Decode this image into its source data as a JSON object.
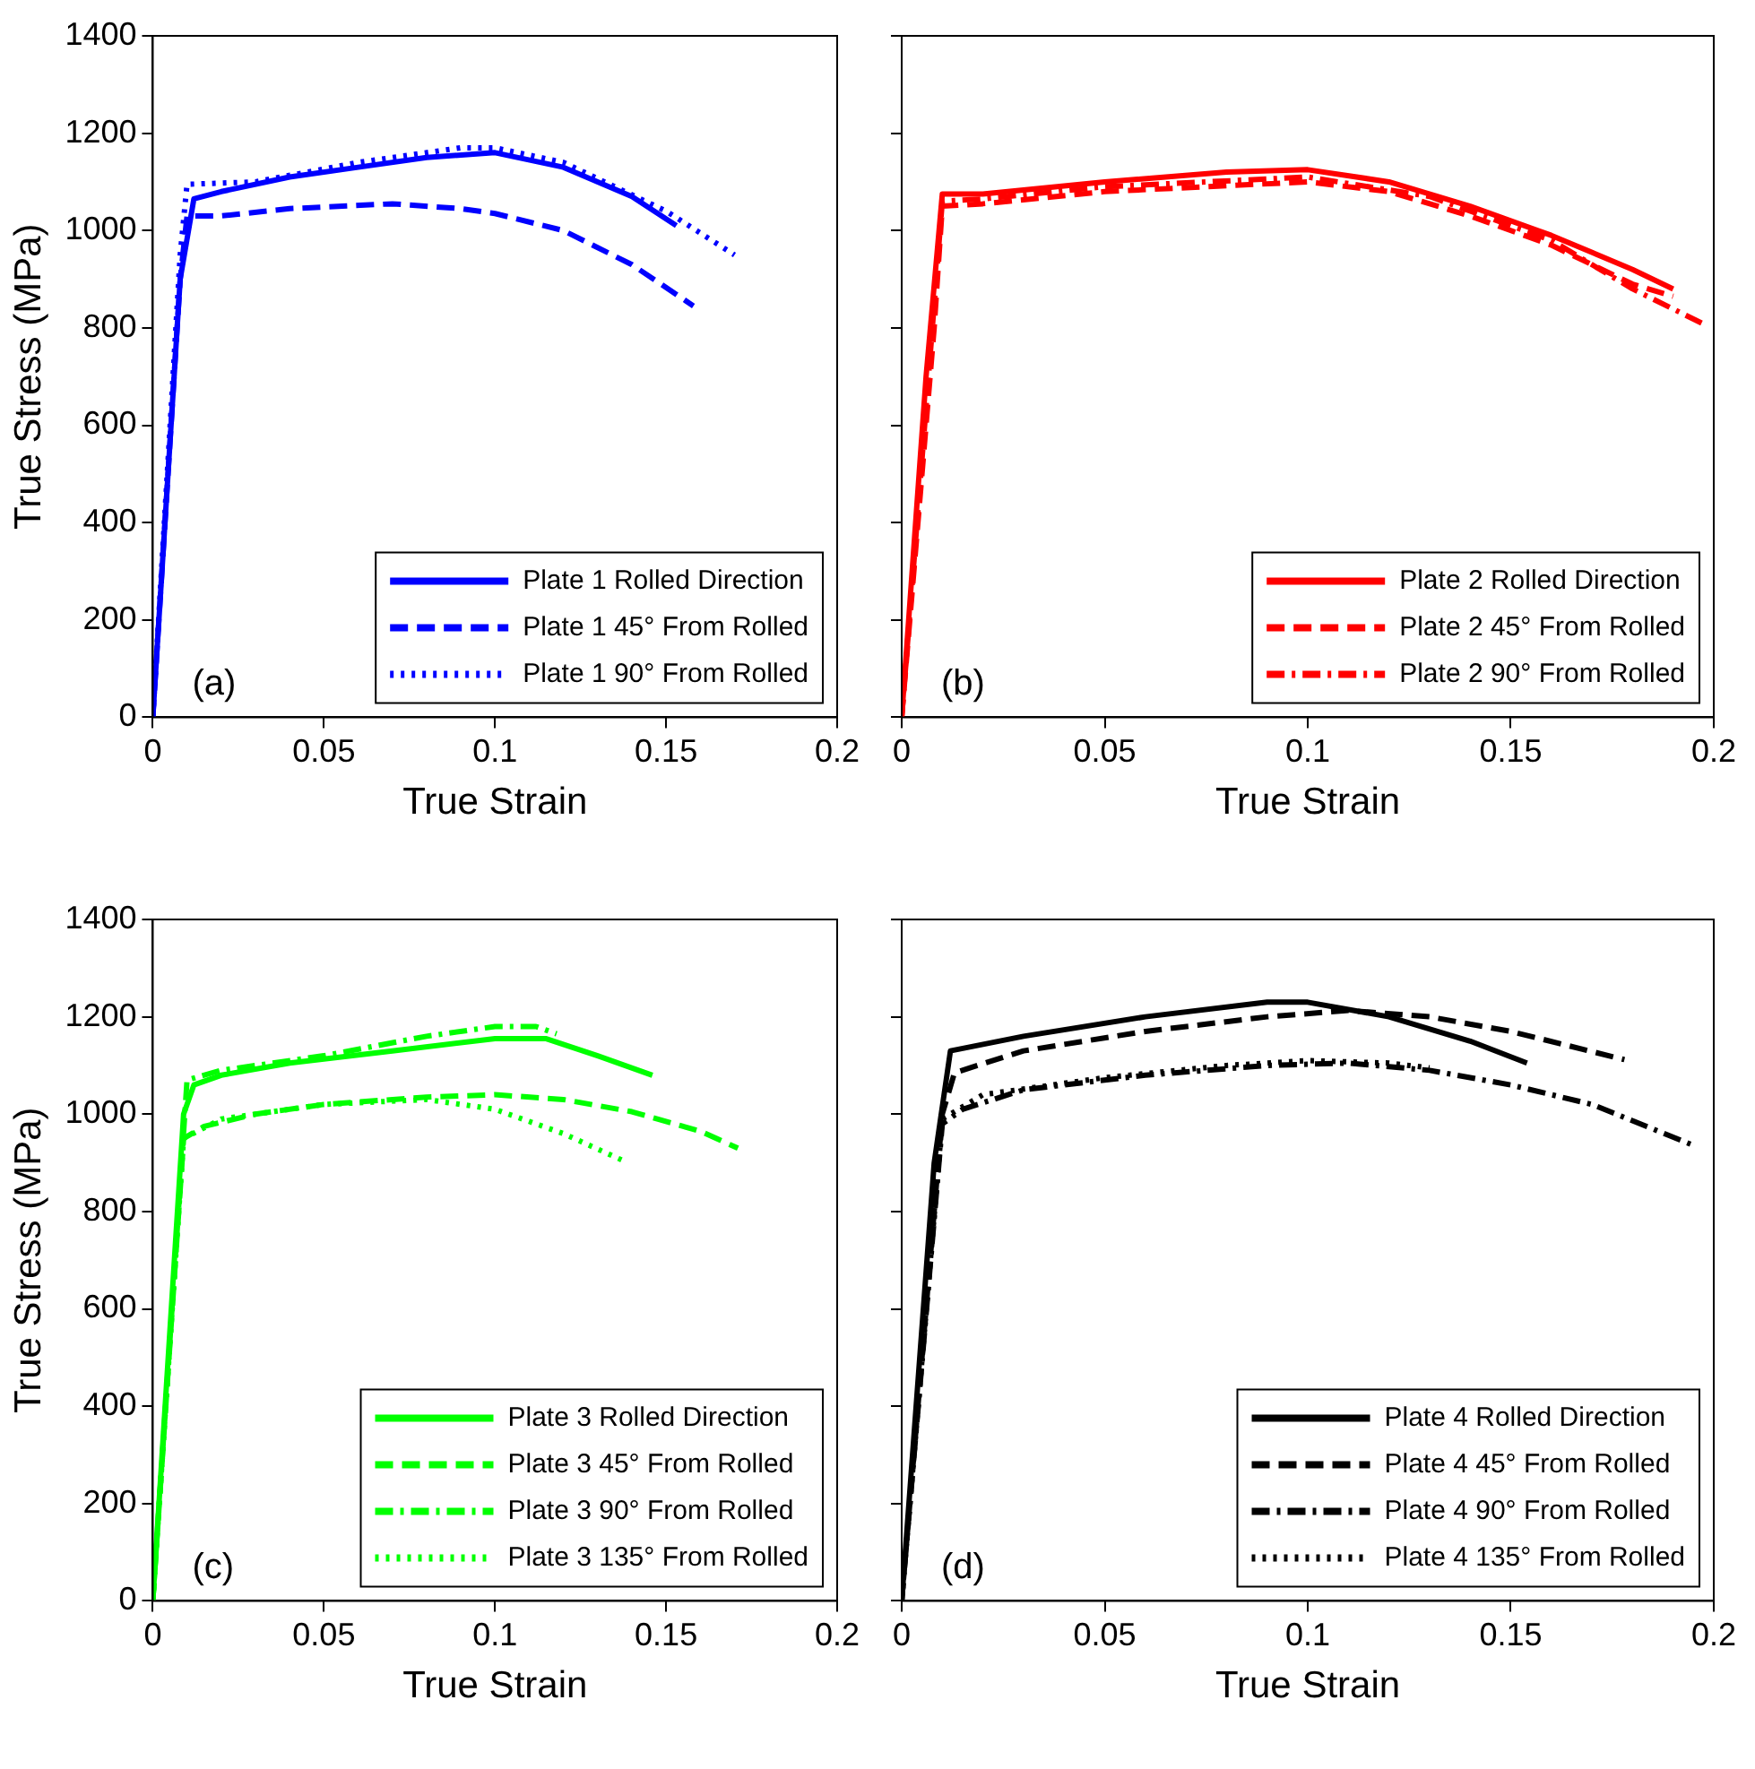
{
  "chart_data": [
    {
      "type": "line",
      "xlabel": "True Strain",
      "ylabel": "True Stress (MPa)",
      "xlim": [
        0,
        0.2
      ],
      "xticks": [
        0,
        0.05,
        0.1,
        0.15,
        0.2
      ],
      "ylim": [
        0,
        1400
      ],
      "yticks": [
        0,
        200,
        400,
        600,
        800,
        1000,
        1200,
        1400
      ],
      "grid": false,
      "legend": "bottom right",
      "marker": "none",
      "annotations": [
        "(a)"
      ],
      "series": [
        {
          "name": "Plate 1 Rolled Direction",
          "color": "#0000ff",
          "line_style": "solid",
          "x": [
            0,
            0.008,
            0.012,
            0.02,
            0.04,
            0.06,
            0.08,
            0.1,
            0.12,
            0.14,
            0.153
          ],
          "values": [
            0,
            900,
            1065,
            1080,
            1110,
            1130,
            1150,
            1160,
            1130,
            1070,
            1010
          ]
        },
        {
          "name": "Plate 1 45° From Rolled",
          "color": "#0000ff",
          "line_style": "dashed",
          "x": [
            0,
            0.008,
            0.01,
            0.02,
            0.04,
            0.07,
            0.09,
            0.1,
            0.12,
            0.14,
            0.158
          ],
          "values": [
            0,
            900,
            1030,
            1030,
            1045,
            1055,
            1045,
            1035,
            1000,
            930,
            845
          ]
        },
        {
          "name": "Plate 1 90° From Rolled",
          "color": "#0000ff",
          "line_style": "dotted",
          "x": [
            0,
            0.008,
            0.01,
            0.03,
            0.06,
            0.09,
            0.1,
            0.12,
            0.15,
            0.17
          ],
          "values": [
            0,
            950,
            1095,
            1100,
            1140,
            1170,
            1170,
            1140,
            1040,
            950
          ]
        }
      ]
    },
    {
      "type": "line",
      "xlabel": "True Strain",
      "xlim": [
        0,
        0.2
      ],
      "xticks": [
        0,
        0.05,
        0.1,
        0.15,
        0.2
      ],
      "ylim": [
        0,
        1400
      ],
      "yticks": [
        0,
        200,
        400,
        600,
        800,
        1000,
        1200,
        1400
      ],
      "grid": false,
      "legend": "bottom right",
      "marker": "none",
      "annotations": [
        "(b)"
      ],
      "tick_labels": "x",
      "series": [
        {
          "name": "Plate 2 Rolled Direction",
          "color": "#ff0000",
          "line_style": "solid",
          "x": [
            0,
            0.006,
            0.01,
            0.02,
            0.05,
            0.08,
            0.1,
            0.12,
            0.14,
            0.16,
            0.18,
            0.19
          ],
          "values": [
            0,
            700,
            1075,
            1075,
            1100,
            1120,
            1125,
            1100,
            1050,
            990,
            920,
            880
          ]
        },
        {
          "name": "Plate 2 45° From Rolled",
          "color": "#ff0000",
          "line_style": "dashed",
          "x": [
            0,
            0.008,
            0.01,
            0.02,
            0.05,
            0.1,
            0.12,
            0.14,
            0.16,
            0.18,
            0.19
          ],
          "values": [
            0,
            800,
            1050,
            1055,
            1080,
            1100,
            1080,
            1030,
            970,
            890,
            865
          ]
        },
        {
          "name": "Plate 2 90° From Rolled",
          "color": "#ff0000",
          "line_style": "dashdot",
          "x": [
            0,
            0.01,
            0.02,
            0.05,
            0.1,
            0.13,
            0.16,
            0.18,
            0.197
          ],
          "values": [
            0,
            1060,
            1065,
            1090,
            1110,
            1070,
            980,
            880,
            810
          ]
        }
      ]
    },
    {
      "type": "line",
      "xlabel": "True Strain",
      "ylabel": "True Stress (MPa)",
      "xlim": [
        0,
        0.2
      ],
      "xticks": [
        0,
        0.05,
        0.1,
        0.15,
        0.2
      ],
      "ylim": [
        0,
        1400
      ],
      "yticks": [
        0,
        200,
        400,
        600,
        800,
        1000,
        1200,
        1400
      ],
      "grid": false,
      "legend": "bottom right",
      "marker": "none",
      "annotations": [
        "(c)"
      ],
      "series": [
        {
          "name": "Plate 3 Rolled Direction",
          "color": "#00ff00",
          "line_style": "solid",
          "x": [
            0,
            0.009,
            0.012,
            0.02,
            0.04,
            0.07,
            0.1,
            0.115,
            0.13,
            0.146
          ],
          "values": [
            0,
            1000,
            1060,
            1080,
            1105,
            1130,
            1155,
            1155,
            1120,
            1080
          ]
        },
        {
          "name": "Plate 3 45° From Rolled",
          "color": "#00ff00",
          "line_style": "dashed",
          "x": [
            0,
            0.009,
            0.015,
            0.03,
            0.05,
            0.08,
            0.1,
            0.12,
            0.14,
            0.16,
            0.171
          ],
          "values": [
            0,
            950,
            975,
            1000,
            1020,
            1035,
            1040,
            1030,
            1005,
            965,
            930
          ]
        },
        {
          "name": "Plate 3 90° From Rolled",
          "color": "#00ff00",
          "line_style": "dashdot",
          "x": [
            0,
            0.01,
            0.02,
            0.05,
            0.08,
            0.1,
            0.112,
            0.118
          ],
          "values": [
            0,
            1070,
            1090,
            1120,
            1160,
            1180,
            1180,
            1165
          ]
        },
        {
          "name": "Plate 3 135° From Rolled",
          "color": "#00ff00",
          "line_style": "dotted",
          "x": [
            0,
            0.009,
            0.02,
            0.05,
            0.08,
            0.1,
            0.12,
            0.137
          ],
          "values": [
            0,
            950,
            990,
            1020,
            1030,
            1010,
            960,
            906
          ]
        }
      ]
    },
    {
      "type": "line",
      "xlabel": "True Strain",
      "xlim": [
        0,
        0.2
      ],
      "xticks": [
        0,
        0.05,
        0.1,
        0.15,
        0.2
      ],
      "ylim": [
        0,
        1400
      ],
      "yticks": [
        0,
        200,
        400,
        600,
        800,
        1000,
        1200,
        1400
      ],
      "grid": false,
      "legend": "bottom right",
      "marker": "none",
      "annotations": [
        "(d)"
      ],
      "tick_labels": "x",
      "series": [
        {
          "name": "Plate 4 Rolled Direction",
          "color": "#000000",
          "line_style": "solid",
          "x": [
            0,
            0.008,
            0.012,
            0.03,
            0.06,
            0.09,
            0.1,
            0.12,
            0.14,
            0.154
          ],
          "values": [
            0,
            900,
            1130,
            1160,
            1200,
            1230,
            1230,
            1200,
            1150,
            1105
          ]
        },
        {
          "name": "Plate 4 45° From Rolled",
          "color": "#000000",
          "line_style": "dashed",
          "x": [
            0,
            0.01,
            0.013,
            0.03,
            0.06,
            0.09,
            0.11,
            0.13,
            0.15,
            0.178
          ],
          "values": [
            0,
            1000,
            1085,
            1130,
            1170,
            1200,
            1213,
            1200,
            1170,
            1112
          ]
        },
        {
          "name": "Plate 4 90° From Rolled",
          "color": "#000000",
          "line_style": "dashdot",
          "x": [
            0,
            0.01,
            0.015,
            0.03,
            0.06,
            0.09,
            0.11,
            0.13,
            0.15,
            0.17,
            0.195
          ],
          "values": [
            0,
            980,
            1010,
            1050,
            1080,
            1100,
            1105,
            1090,
            1060,
            1020,
            936
          ]
        },
        {
          "name": "Plate 4 135° From Rolled",
          "color": "#000000",
          "line_style": "dotted",
          "x": [
            0,
            0.01,
            0.02,
            0.05,
            0.08,
            0.1,
            0.12,
            0.13
          ],
          "values": [
            0,
            990,
            1040,
            1075,
            1100,
            1110,
            1105,
            1095
          ]
        }
      ]
    }
  ]
}
